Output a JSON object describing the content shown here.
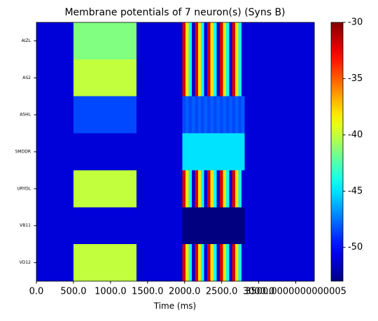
{
  "chart_data": {
    "type": "heatmap",
    "title": "Membrane potentials of 7 neuron(s) (Syns B)",
    "xlabel": "Time (ms)",
    "rows": [
      "AIZL",
      "AS2",
      "ASHL",
      "SMDDR",
      "URYDL",
      "VB11",
      "VD12"
    ],
    "x": [
      0,
      500,
      1350,
      1970,
      2012,
      2054,
      2096,
      2138,
      2180,
      2222,
      2264,
      2306,
      2348,
      2390,
      2432,
      2474,
      2516,
      2558,
      2600,
      2642,
      2684,
      2726,
      2768,
      2810,
      3750
    ],
    "values": [
      [
        -51,
        -41.5,
        -51,
        -32,
        -38,
        -44,
        -51,
        -32,
        -38,
        -44,
        -51,
        -32,
        -38,
        -44,
        -51,
        -32,
        -38,
        -44,
        -51,
        -32,
        -38,
        -44,
        -51,
        -51
      ],
      [
        -51,
        -40,
        -51,
        -32,
        -38,
        -44,
        -51,
        -32,
        -38,
        -44,
        -51,
        -32,
        -38,
        -44,
        -51,
        -32,
        -38,
        -44,
        -51,
        -32,
        -38,
        -44,
        -51,
        -51
      ],
      [
        -51,
        -48.5,
        -51,
        -48.5,
        -48,
        -48.5,
        -48,
        -48.5,
        -48,
        -48.5,
        -48,
        -48.5,
        -48,
        -48.5,
        -48,
        -48.5,
        -48,
        -48.5,
        -48,
        -48.5,
        -48,
        -48.5,
        -48,
        -51
      ],
      [
        -51,
        -51,
        -51,
        -45,
        -45,
        -45,
        -45,
        -45,
        -45,
        -45,
        -45,
        -45,
        -45,
        -45,
        -45,
        -45,
        -45,
        -45,
        -45,
        -45,
        -45,
        -45,
        -45,
        -51
      ],
      [
        -51,
        -40,
        -51,
        -32,
        -38,
        -44,
        -51,
        -32,
        -38,
        -44,
        -51,
        -32,
        -38,
        -44,
        -51,
        -32,
        -38,
        -44,
        -51,
        -32,
        -38,
        -44,
        -51,
        -51
      ],
      [
        -51,
        -51,
        -51,
        -53,
        -53,
        -53,
        -53,
        -53,
        -53,
        -53,
        -53,
        -53,
        -53,
        -53,
        -53,
        -53,
        -53,
        -53,
        -53,
        -53,
        -53,
        -53,
        -53,
        -51
      ],
      [
        -51,
        -40,
        -51,
        -32,
        -38,
        -44,
        -51,
        -32,
        -38,
        -44,
        -51,
        -32,
        -38,
        -44,
        -51,
        -32,
        -38,
        -44,
        -51,
        -32,
        -38,
        -44,
        -51,
        -51
      ]
    ],
    "xlim": [
      0,
      3750
    ],
    "xticks": [
      {
        "value": 0,
        "label": "0.0"
      },
      {
        "value": 500,
        "label": "500.0"
      },
      {
        "value": 1000,
        "label": "1000.0"
      },
      {
        "value": 1500,
        "label": "1500.0"
      },
      {
        "value": 2000,
        "label": "2000.0"
      },
      {
        "value": 2500,
        "label": "2500.0"
      },
      {
        "value": 3000,
        "label": "3000.0"
      },
      {
        "value": 3500,
        "label": "3500.0000000000005"
      }
    ],
    "colorbar_lim": [
      -53,
      -30
    ],
    "colorbar_ticks": [
      -30,
      -35,
      -40,
      -45,
      -50
    ],
    "colormap": "jet"
  }
}
